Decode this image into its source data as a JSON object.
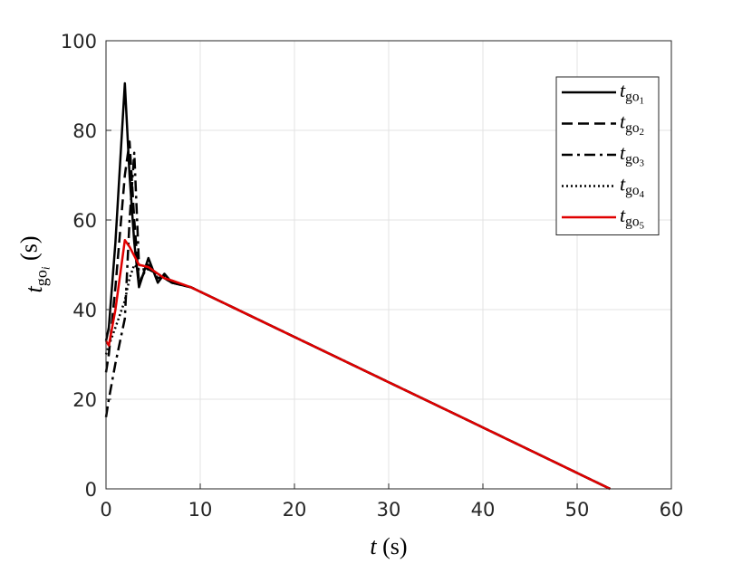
{
  "chart_data": {
    "type": "line",
    "xlabel": "t (s)",
    "ylabel": "tgoi (s)",
    "x": [
      0,
      0.3,
      1,
      2,
      2.5,
      3,
      3.5,
      4.5,
      5.5,
      6.2,
      7,
      9,
      10,
      20,
      30,
      40,
      53.5
    ],
    "series": [
      {
        "name": "tgo1",
        "color": "#000000",
        "style": "solid",
        "values": [
          33,
          36,
          55,
          90.5,
          70,
          55,
          45,
          51.5,
          46,
          48,
          46,
          45,
          44,
          33.9,
          23.8,
          13.7,
          0
        ]
      },
      {
        "name": "tgo2",
        "color": "#000000",
        "style": "dashed",
        "values": [
          26,
          30,
          45,
          70,
          77.5,
          60,
          46,
          50,
          47,
          47.5,
          46,
          45,
          44,
          33.9,
          23.8,
          13.7,
          0
        ]
      },
      {
        "name": "tgo3",
        "color": "#000000",
        "style": "dashdot",
        "values": [
          16,
          20,
          28,
          38,
          60,
          75,
          50,
          49,
          48,
          47,
          46,
          45,
          44,
          33.9,
          23.8,
          13.7,
          0
        ]
      },
      {
        "name": "tgo4",
        "color": "#000000",
        "style": "dotted",
        "values": [
          30,
          32,
          36,
          42,
          47,
          50,
          49,
          49,
          48,
          47,
          46,
          45,
          44,
          33.9,
          23.8,
          13.7,
          0
        ]
      },
      {
        "name": "tgo5",
        "color": "#e00000",
        "style": "solid",
        "values": [
          33,
          32,
          40,
          55.5,
          54,
          52,
          50,
          49.5,
          48,
          47,
          46.5,
          45,
          44,
          33.9,
          23.8,
          13.7,
          0
        ]
      }
    ],
    "xlim": [
      0,
      60
    ],
    "xticks": [
      0,
      10,
      20,
      30,
      40,
      50,
      60
    ],
    "ylim": [
      0,
      100
    ],
    "yticks": [
      0,
      20,
      40,
      60,
      80,
      100
    ],
    "grid": true,
    "legend": "northeast"
  }
}
